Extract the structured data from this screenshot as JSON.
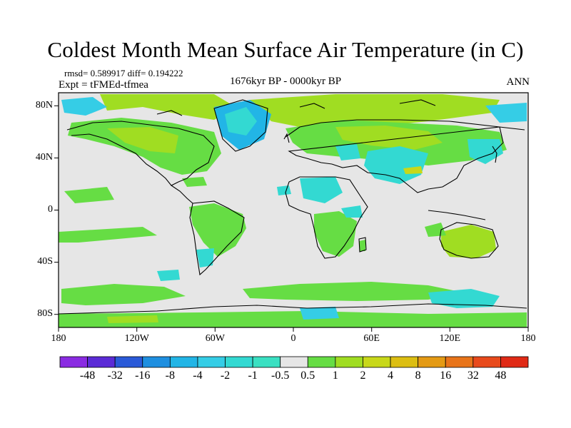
{
  "title": "Coldest Month Mean Surface Air Temperature (in C)",
  "stats_line": "rmsd= 0.589917 diff= 0.194222",
  "experiment": "Expt = tFMEd-tfmea",
  "period": "1676kyr BP - 0000kyr BP",
  "season": "ANN",
  "lat_labels": [
    "80N",
    "40N",
    "0",
    "40S",
    "80S"
  ],
  "lon_labels": [
    "180",
    "120W",
    "60W",
    "0",
    "60E",
    "120E",
    "180"
  ],
  "colorbar": {
    "labels": [
      "-48",
      "-32",
      "-16",
      "-8",
      "-4",
      "-2",
      "-1",
      "-0.5",
      "0.5",
      "1",
      "2",
      "4",
      "8",
      "16",
      "32",
      "48"
    ],
    "colors": [
      "#8a2be2",
      "#5b2bd6",
      "#2a5ad8",
      "#1e8fe0",
      "#22b5e6",
      "#35cde6",
      "#33d9d2",
      "#3ae0c2",
      "#e6e6e6",
      "#66dd44",
      "#a0dd22",
      "#c8d81a",
      "#dcbe12",
      "#e49a14",
      "#e8741a",
      "#e84a1c",
      "#e02a16"
    ]
  },
  "colors": {
    "land_neutral": "#e6e6e6",
    "warm_1": "#66dd44",
    "warm_2": "#a0dd22",
    "warm_4": "#c8d81a",
    "cool_1": "#33d9d2",
    "cool_2": "#35cde6",
    "cool_4": "#22b5e6"
  }
}
